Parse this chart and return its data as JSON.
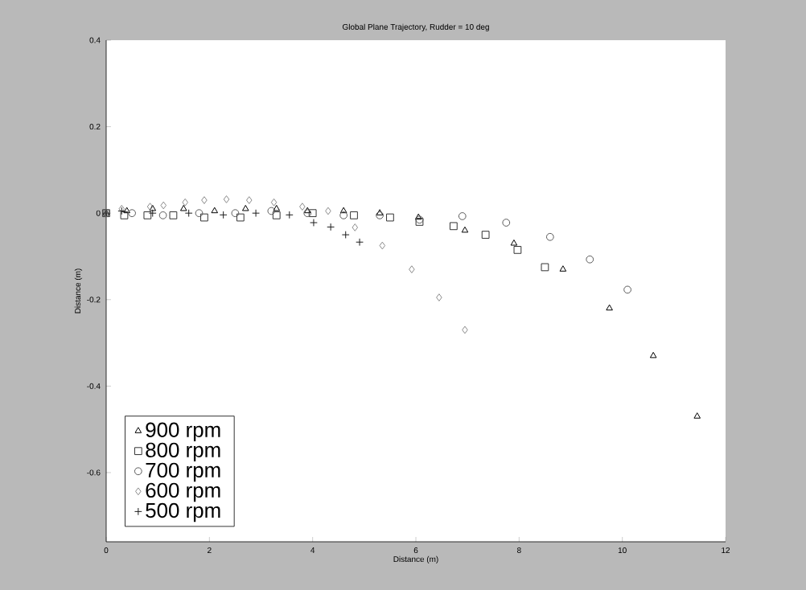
{
  "chart_data": {
    "type": "scatter",
    "title": "Global Plane Trajectory, Rudder = 10 deg",
    "xlabel": "Distance (m)",
    "ylabel": "Distance (m)",
    "xlim": [
      0,
      12
    ],
    "ylim": [
      -0.76,
      0.4
    ],
    "xticks": [
      0,
      2,
      4,
      6,
      8,
      10,
      12
    ],
    "yticks": [
      -0.6,
      -0.4,
      -0.2,
      0,
      0.2,
      0.4
    ],
    "legend": "bottom left",
    "grid": false,
    "series": [
      {
        "name": "900 rpm",
        "color": "#000000",
        "marker": "triangle",
        "x": [
          0,
          0.4,
          0.9,
          1.5,
          2.1,
          2.7,
          3.3,
          3.9,
          4.6,
          5.3,
          6.05,
          6.95,
          7.9,
          8.85,
          9.75,
          10.6,
          11.45
        ],
        "values": [
          0,
          0.005,
          0.01,
          0.01,
          0.005,
          0.01,
          0.01,
          0.005,
          0.005,
          0,
          -0.01,
          -0.04,
          -0.07,
          -0.13,
          -0.22,
          -0.33,
          -0.47
        ]
      },
      {
        "name": "800 rpm",
        "color": "#333333",
        "marker": "square",
        "x": [
          0,
          0.35,
          0.8,
          1.3,
          1.9,
          2.6,
          3.3,
          4.0,
          4.8,
          5.5,
          6.07,
          6.73,
          7.35,
          7.97,
          8.5
        ],
        "values": [
          0,
          -0.005,
          -0.005,
          -0.005,
          -0.01,
          -0.01,
          -0.005,
          0,
          -0.005,
          -0.01,
          -0.02,
          -0.03,
          -0.05,
          -0.085,
          -0.125
        ]
      },
      {
        "name": "700 rpm",
        "color": "#5a5a5a",
        "marker": "circle",
        "x": [
          0,
          0.5,
          1.1,
          1.8,
          2.5,
          3.2,
          3.9,
          4.6,
          5.3,
          6.07,
          6.9,
          7.75,
          8.6,
          9.37,
          10.1
        ],
        "values": [
          0,
          0,
          -0.005,
          0,
          0,
          0.005,
          0,
          -0.005,
          -0.005,
          -0.015,
          -0.007,
          -0.022,
          -0.055,
          -0.107,
          -0.177
        ]
      },
      {
        "name": "600 rpm",
        "color": "#8a8a8a",
        "marker": "diamond",
        "x": [
          0,
          0.3,
          0.85,
          1.11,
          1.53,
          1.9,
          2.33,
          2.77,
          3.25,
          3.8,
          4.3,
          4.82,
          5.35,
          5.92,
          6.45,
          6.95
        ],
        "values": [
          0,
          0.01,
          0.015,
          0.018,
          0.025,
          0.03,
          0.032,
          0.03,
          0.025,
          0.015,
          0.005,
          -0.033,
          -0.075,
          -0.13,
          -0.195,
          -0.27
        ]
      },
      {
        "name": "500 rpm",
        "color": "#1c1c1c",
        "marker": "cross",
        "x": [
          0,
          0.3,
          0.9,
          1.6,
          2.27,
          2.9,
          3.55,
          4.02,
          4.35,
          4.64,
          4.91
        ],
        "values": [
          0,
          0.005,
          0,
          0,
          -0.004,
          0,
          -0.004,
          -0.022,
          -0.032,
          -0.05,
          -0.067
        ]
      }
    ]
  }
}
